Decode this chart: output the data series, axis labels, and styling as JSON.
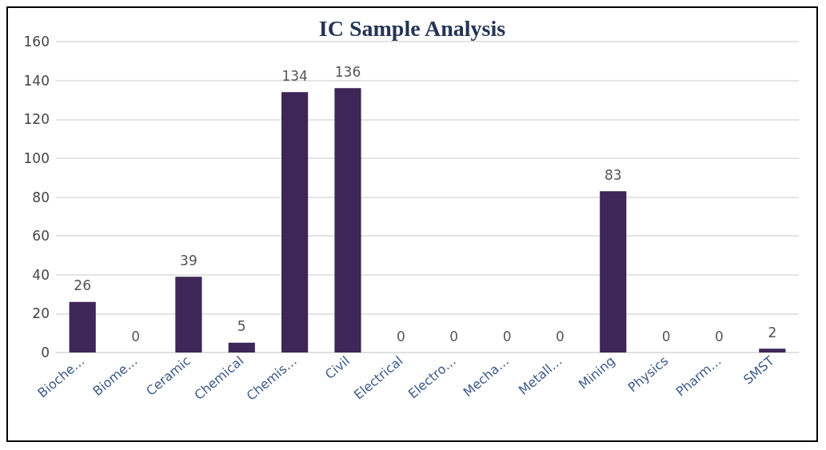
{
  "chart_data": {
    "type": "bar",
    "title": "IC Sample Analysis",
    "categories": [
      "Bioche…",
      "Biome…",
      "Ceramic",
      "Chemical",
      "Chemis…",
      "Civil",
      "Electrical",
      "Electro…",
      "Mecha…",
      "Metall…",
      "Mining",
      "Physics",
      "Pharm…",
      "SMST"
    ],
    "values": [
      26,
      0,
      39,
      5,
      134,
      136,
      0,
      0,
      0,
      0,
      83,
      0,
      0,
      2
    ],
    "color": "#3d2658",
    "ylim": [
      0,
      160
    ],
    "yticks": [
      0,
      20,
      40,
      60,
      80,
      100,
      120,
      140,
      160
    ],
    "grid": "y",
    "data_labels": true
  }
}
